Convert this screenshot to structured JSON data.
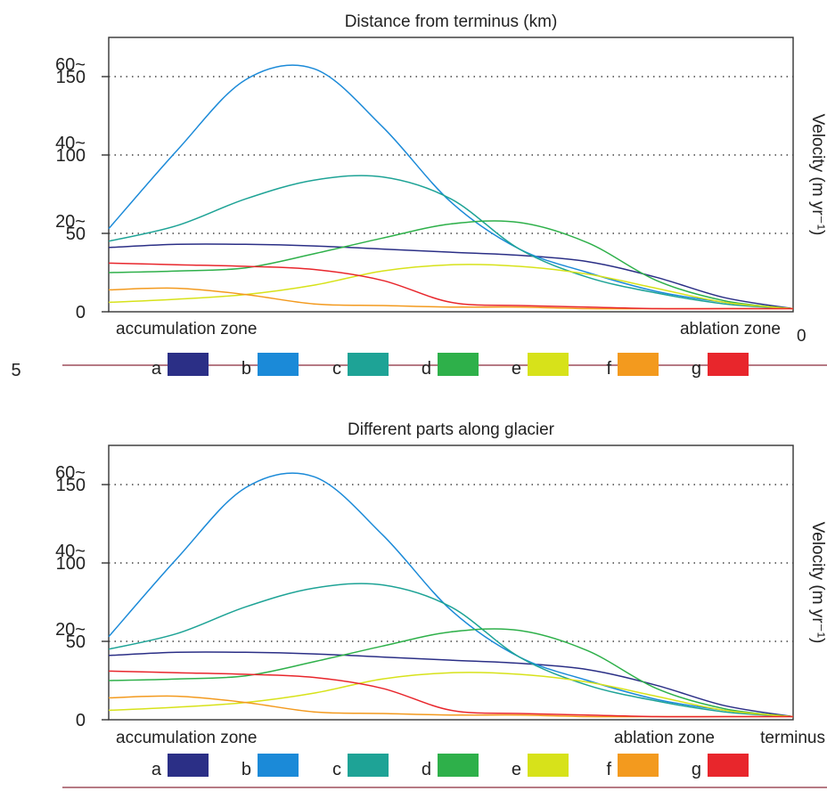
{
  "page_marker": "5",
  "legend": [
    {
      "label": "a",
      "color": "#2b2f86"
    },
    {
      "label": "b",
      "color": "#1b8ad8"
    },
    {
      "label": "c",
      "color": "#1ea396"
    },
    {
      "label": "d",
      "color": "#2eb04a"
    },
    {
      "label": "e",
      "color": "#d7e21a"
    },
    {
      "label": "f",
      "color": "#f39a1e"
    },
    {
      "label": "g",
      "color": "#e8262c"
    }
  ],
  "divider_color": "#8a2a3a",
  "chart_data": [
    {
      "type": "line",
      "title": "Distance from terminus (km)",
      "ylabel": "Velocity (m yr⁻¹)",
      "x_axis_label_left": "accumulation zone",
      "x_axis_label_right": "ablation zone",
      "x_end_tick": "0",
      "y_tick_labels": [
        {
          "value": 0,
          "lines": [
            "0"
          ]
        },
        {
          "value": 50,
          "lines": [
            "20~",
            "50"
          ]
        },
        {
          "value": 100,
          "lines": [
            "40~",
            "100"
          ]
        },
        {
          "value": 150,
          "lines": [
            "60~",
            "150"
          ]
        }
      ],
      "ylim": [
        0,
        175
      ],
      "grid": "dotted horizontal at 50, 100, 150",
      "x": [
        0,
        10,
        20,
        30,
        40,
        50,
        60,
        70,
        80,
        90,
        100
      ],
      "series": [
        {
          "name": "a",
          "values": [
            41,
            43,
            43,
            42,
            40,
            38,
            36,
            32,
            22,
            9,
            2
          ]
        },
        {
          "name": "b",
          "values": [
            53,
            103,
            148,
            155,
            118,
            70,
            40,
            25,
            13,
            6,
            2
          ]
        },
        {
          "name": "c",
          "values": [
            45,
            55,
            72,
            84,
            86,
            72,
            40,
            22,
            12,
            5,
            2
          ]
        },
        {
          "name": "d",
          "values": [
            25,
            26,
            28,
            37,
            47,
            56,
            57,
            44,
            20,
            7,
            2
          ]
        },
        {
          "name": "e",
          "values": [
            6,
            8,
            11,
            17,
            26,
            30,
            29,
            24,
            15,
            6,
            2
          ]
        },
        {
          "name": "f",
          "values": [
            14,
            15,
            11,
            5,
            4,
            3,
            3,
            2,
            2,
            2,
            2
          ]
        },
        {
          "name": "g",
          "values": [
            31,
            30,
            29,
            27,
            20,
            6,
            4,
            3,
            2,
            2,
            2
          ]
        }
      ]
    },
    {
      "type": "line",
      "title": "Different parts along glacier",
      "ylabel": "Velocity (m yr⁻¹)",
      "x_axis_label_left": "accumulation zone",
      "x_axis_label_right": "ablation zone",
      "x_end_tick": "terminus",
      "y_tick_labels": [
        {
          "value": 0,
          "lines": [
            "0"
          ]
        },
        {
          "value": 50,
          "lines": [
            "20~",
            "50"
          ]
        },
        {
          "value": 100,
          "lines": [
            "40~",
            "100"
          ]
        },
        {
          "value": 150,
          "lines": [
            "60~",
            "150"
          ]
        }
      ],
      "ylim": [
        0,
        175
      ],
      "grid": "dotted horizontal at 50, 100, 150",
      "x": [
        0,
        10,
        20,
        30,
        40,
        50,
        60,
        70,
        80,
        90,
        100
      ],
      "series": [
        {
          "name": "a",
          "values": [
            41,
            43,
            43,
            42,
            40,
            38,
            36,
            32,
            22,
            9,
            2
          ]
        },
        {
          "name": "b",
          "values": [
            53,
            103,
            148,
            155,
            118,
            70,
            40,
            25,
            13,
            6,
            2
          ]
        },
        {
          "name": "c",
          "values": [
            45,
            55,
            72,
            84,
            86,
            72,
            40,
            22,
            12,
            5,
            2
          ]
        },
        {
          "name": "d",
          "values": [
            25,
            26,
            28,
            37,
            47,
            56,
            57,
            44,
            20,
            7,
            2
          ]
        },
        {
          "name": "e",
          "values": [
            6,
            8,
            11,
            17,
            26,
            30,
            29,
            24,
            15,
            6,
            2
          ]
        },
        {
          "name": "f",
          "values": [
            14,
            15,
            11,
            5,
            4,
            3,
            3,
            2,
            2,
            2,
            2
          ]
        },
        {
          "name": "g",
          "values": [
            31,
            30,
            29,
            27,
            20,
            6,
            4,
            3,
            2,
            2,
            2
          ]
        }
      ]
    }
  ]
}
